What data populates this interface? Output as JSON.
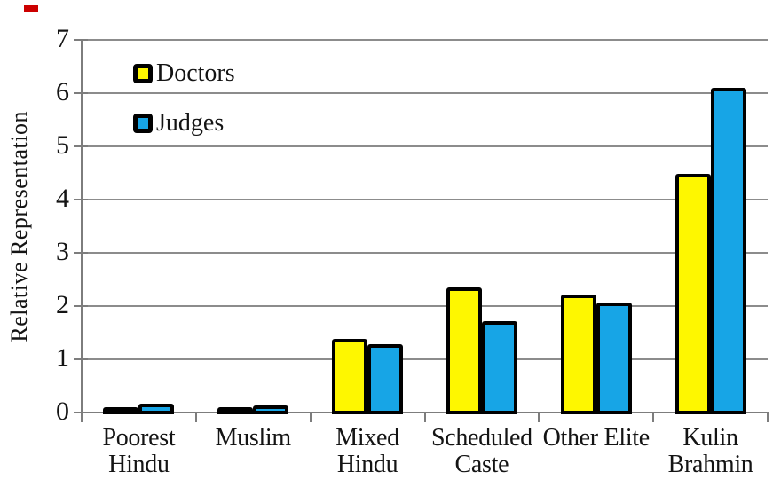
{
  "chart_data": {
    "type": "bar",
    "title": "",
    "xlabel": "",
    "ylabel": "Relative Representation",
    "ylim": [
      0,
      7
    ],
    "yticks": [
      0,
      1,
      2,
      3,
      4,
      5,
      6,
      7
    ],
    "grid": true,
    "legend_position": "top-left-inside",
    "categories": [
      "Poorest Hindu",
      "Muslim",
      "Mixed Hindu",
      "Scheduled Caste",
      "Other Elite",
      "Kulin Brahmin"
    ],
    "category_lines": [
      [
        "Poorest",
        "Hindu"
      ],
      [
        "Muslim"
      ],
      [
        "Mixed",
        "Hindu"
      ],
      [
        "Scheduled",
        "Caste"
      ],
      [
        "Other Elite"
      ],
      [
        "Kulin",
        "Brahmin"
      ]
    ],
    "series": [
      {
        "name": "Doctors",
        "color": "#FEF700",
        "values": [
          0.08,
          0.1,
          1.38,
          2.35,
          2.21,
          4.48
        ]
      },
      {
        "name": "Judges",
        "color": "#17A5E6",
        "values": [
          0.17,
          0.13,
          1.29,
          1.72,
          2.06,
          6.1
        ]
      }
    ],
    "bar_outline_color": "#000000"
  },
  "colors": {
    "gridline": "#8C8C8C",
    "axis": "#7D7D7D",
    "text": "#141414",
    "background": "#FFFFFF",
    "red_mark": "#CC0000"
  }
}
